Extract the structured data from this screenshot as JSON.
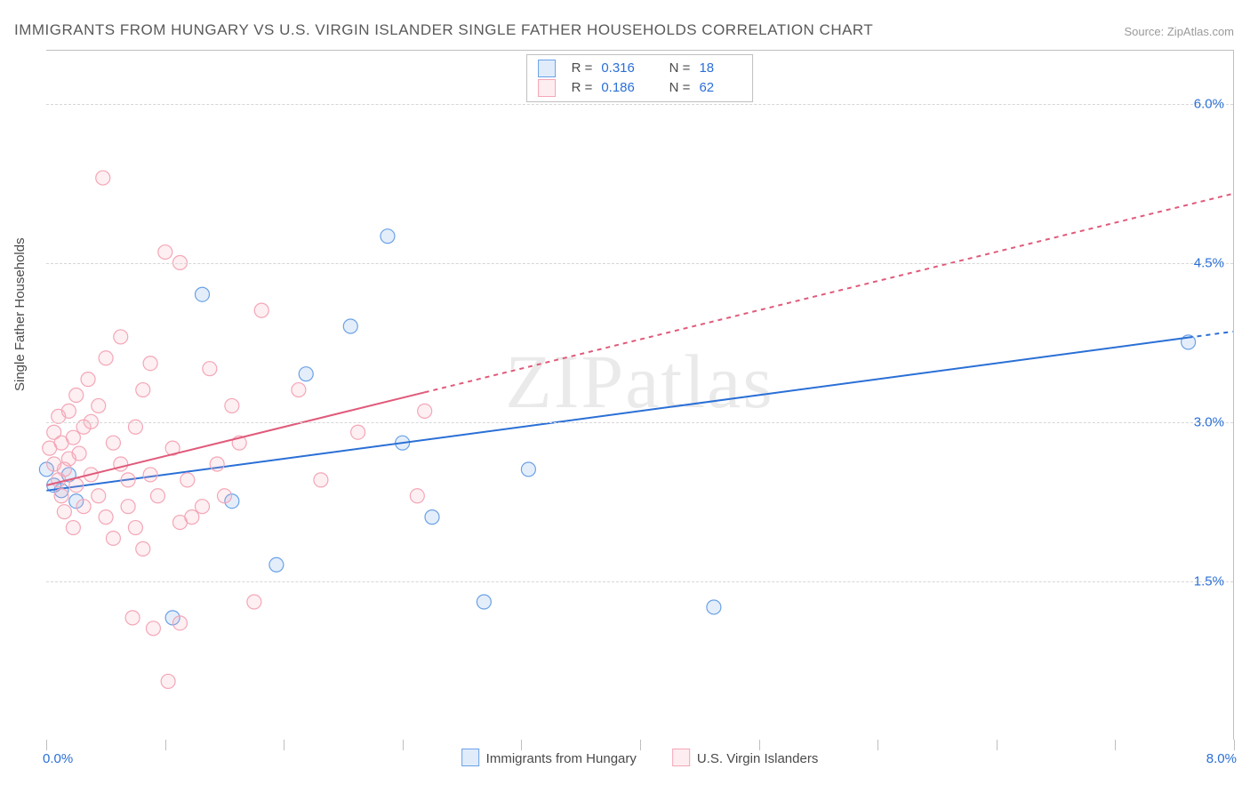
{
  "title": "IMMIGRANTS FROM HUNGARY VS U.S. VIRGIN ISLANDER SINGLE FATHER HOUSEHOLDS CORRELATION CHART",
  "source": "Source: ZipAtlas.com",
  "watermark": "ZIPatlas",
  "y_axis_label": "Single Father Households",
  "chart": {
    "type": "scatter",
    "xlim": [
      0.0,
      8.0
    ],
    "ylim": [
      0.0,
      6.5
    ],
    "x_tick_min_label": "0.0%",
    "x_tick_max_label": "8.0%",
    "x_tick_positions": [
      0.0,
      0.8,
      1.6,
      2.4,
      3.2,
      4.0,
      4.8,
      5.6,
      6.4,
      7.2,
      8.0
    ],
    "y_ticks": [
      {
        "value": 1.5,
        "label": "1.5%"
      },
      {
        "value": 3.0,
        "label": "3.0%"
      },
      {
        "value": 4.5,
        "label": "4.5%"
      },
      {
        "value": 6.0,
        "label": "6.0%"
      }
    ],
    "grid_color": "#d6d6d6",
    "background_color": "#ffffff",
    "axis_border_color": "#bfbfbf",
    "marker_radius": 8,
    "marker_fill_opacity": 0.18,
    "marker_stroke_width": 1.2,
    "line_width": 2.0,
    "dash_pattern": "5,5"
  },
  "series": [
    {
      "id": "hungary",
      "label": "Immigrants from Hungary",
      "color": "#6aa1e6",
      "line_color": "#2a6fd6",
      "R": "0.316",
      "N": "18",
      "points": [
        [
          0.0,
          2.55
        ],
        [
          0.05,
          2.4
        ],
        [
          0.1,
          2.35
        ],
        [
          0.15,
          2.5
        ],
        [
          0.2,
          2.25
        ],
        [
          0.85,
          1.15
        ],
        [
          1.05,
          4.2
        ],
        [
          1.25,
          2.25
        ],
        [
          1.55,
          1.65
        ],
        [
          1.75,
          3.45
        ],
        [
          2.05,
          3.9
        ],
        [
          2.3,
          4.75
        ],
        [
          2.4,
          2.8
        ],
        [
          2.6,
          2.1
        ],
        [
          2.95,
          1.3
        ],
        [
          3.25,
          2.55
        ],
        [
          4.5,
          1.25
        ],
        [
          7.7,
          3.75
        ]
      ],
      "trend": {
        "x1": 0.0,
        "y1": 2.35,
        "x2": 8.0,
        "y2": 3.85,
        "solid_until_x": 7.7
      }
    },
    {
      "id": "usvi",
      "label": "U.S. Virgin Islanders",
      "color": "#f4a6b7",
      "line_color": "#e05a7a",
      "R": "0.186",
      "N": "62",
      "points": [
        [
          0.02,
          2.75
        ],
        [
          0.05,
          2.6
        ],
        [
          0.05,
          2.9
        ],
        [
          0.08,
          2.45
        ],
        [
          0.08,
          3.05
        ],
        [
          0.1,
          2.3
        ],
        [
          0.1,
          2.8
        ],
        [
          0.12,
          2.15
        ],
        [
          0.12,
          2.55
        ],
        [
          0.15,
          2.65
        ],
        [
          0.15,
          3.1
        ],
        [
          0.18,
          2.0
        ],
        [
          0.18,
          2.85
        ],
        [
          0.2,
          2.4
        ],
        [
          0.2,
          3.25
        ],
        [
          0.22,
          2.7
        ],
        [
          0.25,
          2.95
        ],
        [
          0.25,
          2.2
        ],
        [
          0.28,
          3.4
        ],
        [
          0.3,
          2.5
        ],
        [
          0.3,
          3.0
        ],
        [
          0.35,
          2.3
        ],
        [
          0.35,
          3.15
        ],
        [
          0.38,
          5.3
        ],
        [
          0.4,
          2.1
        ],
        [
          0.4,
          3.6
        ],
        [
          0.45,
          2.8
        ],
        [
          0.45,
          1.9
        ],
        [
          0.5,
          2.6
        ],
        [
          0.5,
          3.8
        ],
        [
          0.55,
          2.2
        ],
        [
          0.55,
          2.45
        ],
        [
          0.58,
          1.15
        ],
        [
          0.6,
          2.95
        ],
        [
          0.6,
          2.0
        ],
        [
          0.65,
          3.3
        ],
        [
          0.65,
          1.8
        ],
        [
          0.7,
          3.55
        ],
        [
          0.7,
          2.5
        ],
        [
          0.72,
          1.05
        ],
        [
          0.75,
          2.3
        ],
        [
          0.8,
          4.6
        ],
        [
          0.82,
          0.55
        ],
        [
          0.85,
          2.75
        ],
        [
          0.9,
          2.05
        ],
        [
          0.9,
          1.1
        ],
        [
          0.9,
          4.5
        ],
        [
          0.95,
          2.45
        ],
        [
          0.98,
          2.1
        ],
        [
          1.05,
          2.2
        ],
        [
          1.1,
          3.5
        ],
        [
          1.15,
          2.6
        ],
        [
          1.2,
          2.3
        ],
        [
          1.25,
          3.15
        ],
        [
          1.3,
          2.8
        ],
        [
          1.4,
          1.3
        ],
        [
          1.45,
          4.05
        ],
        [
          1.7,
          3.3
        ],
        [
          1.85,
          2.45
        ],
        [
          2.1,
          2.9
        ],
        [
          2.55,
          3.1
        ],
        [
          2.5,
          2.3
        ]
      ],
      "trend": {
        "x1": 0.0,
        "y1": 2.4,
        "x2": 8.0,
        "y2": 5.15,
        "solid_until_x": 2.55
      }
    }
  ],
  "legend_top": {
    "rows": [
      {
        "series": "hungary",
        "R_label": "R =",
        "N_label": "N ="
      },
      {
        "series": "usvi",
        "R_label": "R =",
        "N_label": "N ="
      }
    ]
  }
}
